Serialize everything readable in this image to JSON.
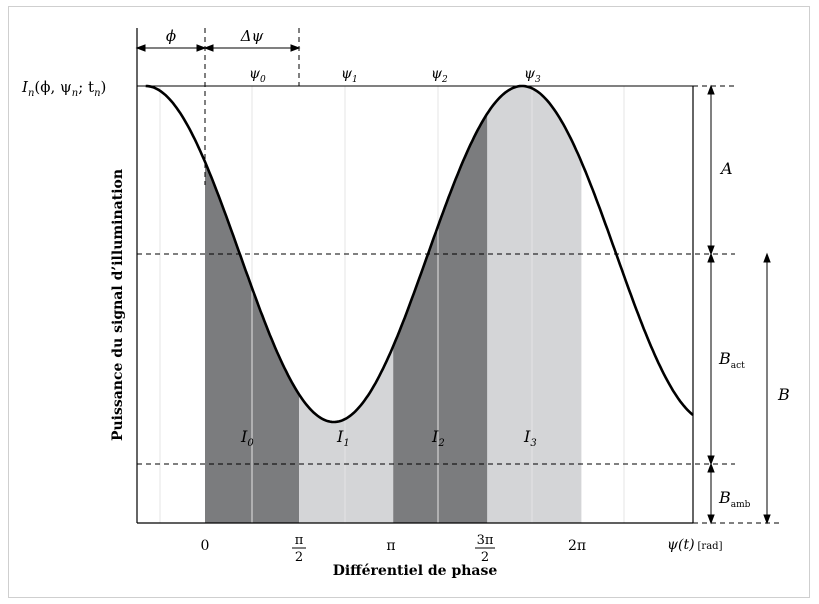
{
  "figure": {
    "ylabel": "Puissance du signal d’illumination",
    "xlabel": "Différentiel de phase",
    "y_top_label": {
      "main": "I",
      "sub": "n",
      "args": "(ϕ, ψ",
      "args_sub": "n",
      "args_tail": "; t",
      "tail_sub": "n",
      "close": ")"
    },
    "x_axis_label": {
      "main": "ψ(t)",
      "unit": "[rad]"
    },
    "phase_offset_label": "ϕ",
    "phase_step_label": "Δψ",
    "sample_points": [
      {
        "name": "ψ",
        "sub": "0"
      },
      {
        "name": "ψ",
        "sub": "1"
      },
      {
        "name": "ψ",
        "sub": "2"
      },
      {
        "name": "ψ",
        "sub": "3"
      }
    ],
    "x_ticks": [
      "0",
      "π/2",
      "π",
      "3π/2",
      "2π"
    ],
    "x_tick_parts": [
      {
        "num": "0",
        "den": ""
      },
      {
        "num": "π",
        "den": "2"
      },
      {
        "num": "π",
        "den": ""
      },
      {
        "num": "3π",
        "den": "2"
      },
      {
        "num": "2π",
        "den": ""
      }
    ],
    "region_labels": [
      {
        "name": "I",
        "sub": "0"
      },
      {
        "name": "I",
        "sub": "1"
      },
      {
        "name": "I",
        "sub": "2"
      },
      {
        "name": "I",
        "sub": "3"
      }
    ],
    "dimension_labels": {
      "A": "A",
      "B": "B",
      "B_act": {
        "name": "B",
        "sub": "act"
      },
      "B_amb": {
        "name": "B",
        "sub": "amb"
      }
    },
    "colors": {
      "dark_region": "#7b7c7e",
      "light_region": "#d4d5d7",
      "curve": "#000000",
      "grid": "#e4e4e4"
    }
  }
}
